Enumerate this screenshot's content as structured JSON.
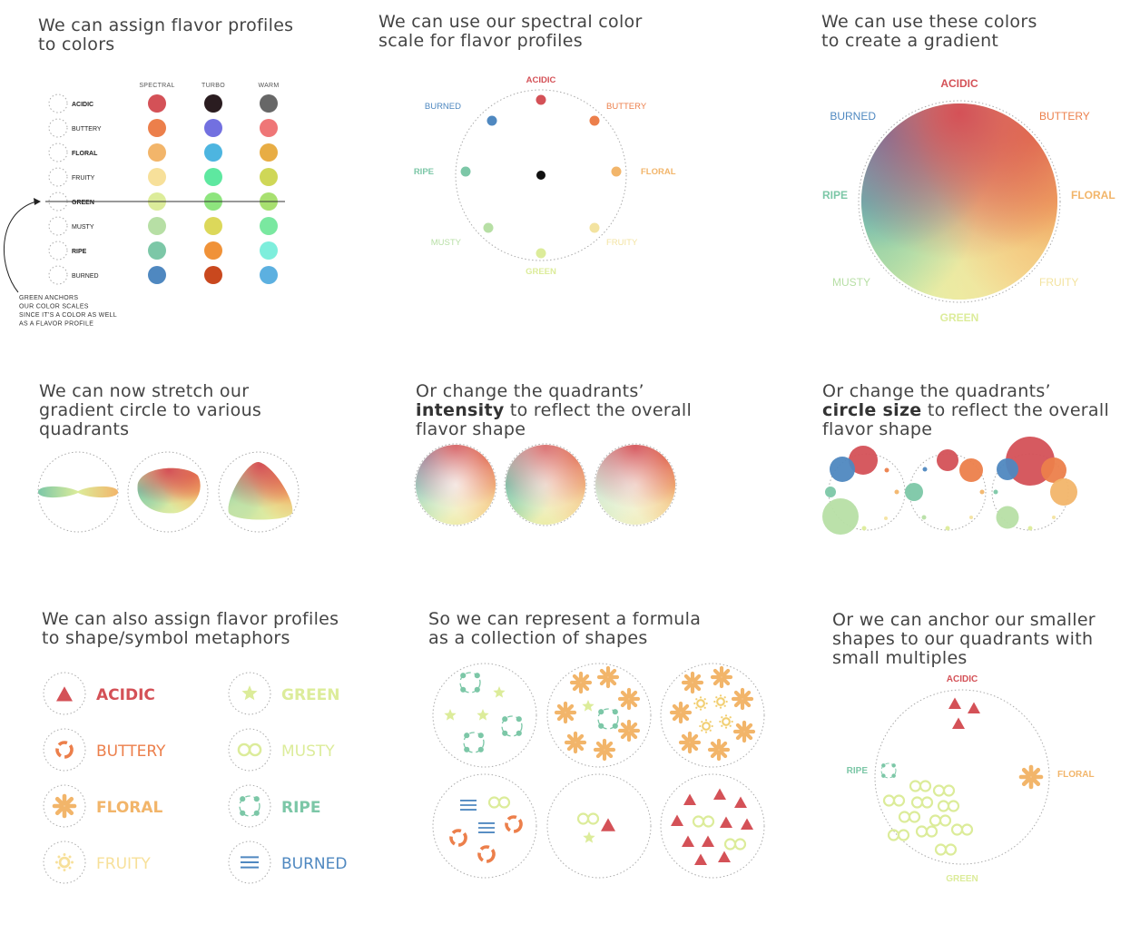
{
  "colors": {
    "acidic": "#d45157",
    "buttery": "#ec7f4b",
    "floral": "#f2b56a",
    "fruity": "#f7e09a",
    "green": "#dcec9a",
    "musty": "#b7dfa5",
    "ripe": "#7cc7a7",
    "burned": "#4f88c0"
  },
  "panel1": {
    "title_l1": "We can assign flavor profiles",
    "title_l2": "to colors",
    "columns": [
      "Spectral",
      "Turbo",
      "Warm"
    ],
    "rows": [
      {
        "name": "ACIDIC",
        "bold": true,
        "colors": [
          "#d45157",
          "#2a1c20",
          "#676767"
        ]
      },
      {
        "name": "BUTTERY",
        "bold": false,
        "colors": [
          "#ec7f4b",
          "#7270e0",
          "#ef7677"
        ]
      },
      {
        "name": "FLORAL",
        "bold": true,
        "colors": [
          "#f2b56a",
          "#4db5e0",
          "#e8ad44"
        ]
      },
      {
        "name": "FRUITY",
        "bold": false,
        "colors": [
          "#f7e09a",
          "#5ee8a0",
          "#cfd757"
        ]
      },
      {
        "name": "GREEN",
        "bold": true,
        "colors": [
          "#dcec9a",
          "#8ee57e",
          "#a8e070"
        ]
      },
      {
        "name": "MUSTY",
        "bold": false,
        "colors": [
          "#b7dfa5",
          "#dcd85a",
          "#7ae8a0"
        ]
      },
      {
        "name": "RIPE",
        "bold": true,
        "colors": [
          "#7cc7a7",
          "#f09238",
          "#7eeedc"
        ]
      },
      {
        "name": "BURNED",
        "bold": false,
        "colors": [
          "#4f88c0",
          "#c9481e",
          "#5cb0e0"
        ]
      }
    ],
    "note": [
      "Green anchors",
      "our color scales",
      "since it's a color as well",
      "as a flavor profile"
    ]
  },
  "panel2": {
    "title_l1": "We can use our spectral color",
    "title_l2": "scale for flavor profiles",
    "labels": {
      "acidic": "ACIDIC",
      "buttery": "BUTTERY",
      "floral": "FLORAL",
      "fruity": "FRUITY",
      "green": "GREEN",
      "musty": "MUSTY",
      "ripe": "RIPE",
      "burned": "BURNED"
    }
  },
  "panel3": {
    "title_l1": "We can use these colors",
    "title_l2": "to create a gradient",
    "labels": {
      "acidic": "ACIDIC",
      "buttery": "BUTTERY",
      "floral": "FLORAL",
      "fruity": "FRUITY",
      "green": "GREEN",
      "musty": "MUSTY",
      "ripe": "RIPE",
      "burned": "BURNED"
    }
  },
  "panel4": {
    "title_l1": "We can now stretch our",
    "title_l2": "gradient circle to various",
    "title_l3": "quadrants"
  },
  "panel5": {
    "title_l1": "Or change the quadrants’",
    "title_bold": "intensity",
    "title_l2_rest": " to reflect the overall",
    "title_l3": "flavor shape"
  },
  "panel6": {
    "title_l1": "Or change the quadrants’",
    "title_bold": "circle size",
    "title_l2_rest": " to reflect the overall",
    "title_l3": "flavor shape"
  },
  "panel7": {
    "title_l1": "We can also assign flavor profiles",
    "title_l2": "to shape/symbol metaphors",
    "items": [
      {
        "name": "ACIDIC",
        "symbol": "triangle-icon"
      },
      {
        "name": "BUTTERY",
        "symbol": "dashed-ring-icon"
      },
      {
        "name": "FLORAL",
        "symbol": "flower-icon"
      },
      {
        "name": "FRUITY",
        "symbol": "sun-icon"
      },
      {
        "name": "GREEN",
        "symbol": "star-icon"
      },
      {
        "name": "MUSTY",
        "symbol": "double-ring-icon"
      },
      {
        "name": "RIPE",
        "symbol": "dot-ring-icon"
      },
      {
        "name": "BURNED",
        "symbol": "lines-icon"
      }
    ]
  },
  "panel8": {
    "title_l1": "So we can represent a formula",
    "title_l2": "as a collection of shapes"
  },
  "panel9": {
    "title_l1": "Or we can anchor our smaller",
    "title_l2": "shapes to our quadrants with",
    "title_l3": "small multiples",
    "labels": {
      "acidic": "ACIDIC",
      "ripe": "RIPE",
      "floral": "FLORAL",
      "green": "GREEN"
    }
  }
}
